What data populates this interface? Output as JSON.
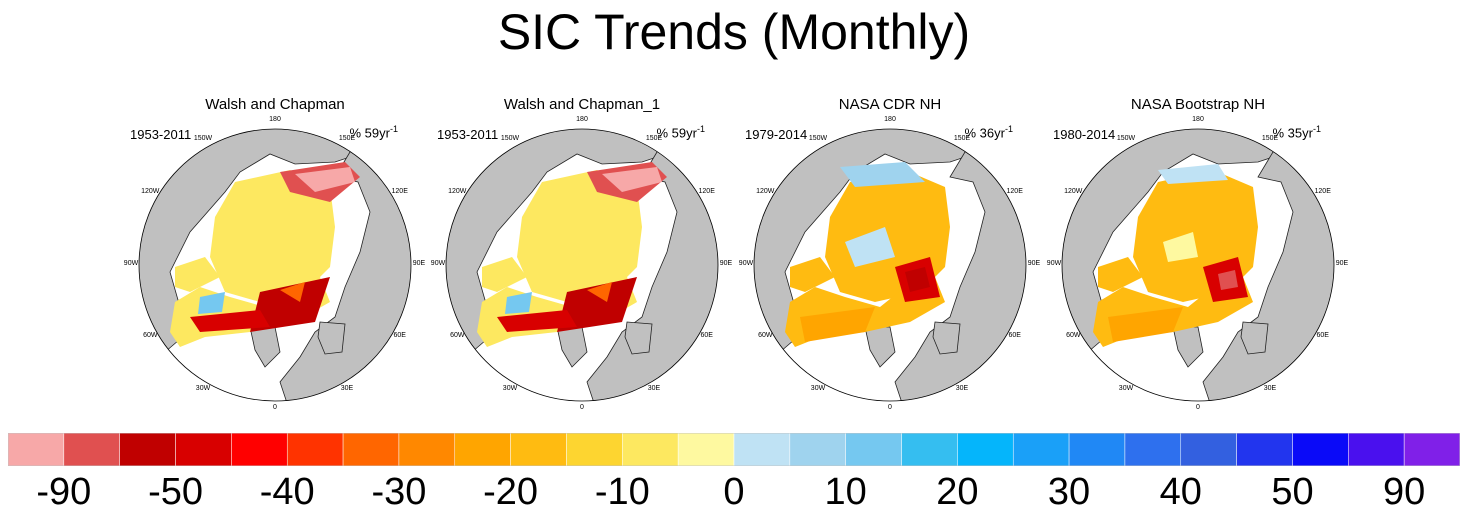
{
  "title": "SIC Trends (Monthly)",
  "panels": [
    {
      "name": "Walsh and Chapman",
      "period": "1953-2011",
      "pct_value": "% 59yr",
      "pct_exp": "-1",
      "style": "wc"
    },
    {
      "name": "Walsh and Chapman_1",
      "period": "1953-2011",
      "pct_value": "% 59yr",
      "pct_exp": "-1",
      "style": "wc"
    },
    {
      "name": "NASA CDR NH",
      "period": "1979-2014",
      "pct_value": "% 36yr",
      "pct_exp": "-1",
      "style": "cdr"
    },
    {
      "name": "NASA Bootstrap NH",
      "period": "1980-2014",
      "pct_value": "% 35yr",
      "pct_exp": "-1",
      "style": "bt"
    }
  ],
  "longitude_labels": [
    "180",
    "150E",
    "120E",
    "90E",
    "60E",
    "30E",
    "0",
    "30W",
    "60W",
    "90W",
    "120W",
    "150W"
  ],
  "colorbar": {
    "colors": [
      "#f7a8a8",
      "#e05050",
      "#c00000",
      "#d80000",
      "#ff0000",
      "#ff3300",
      "#ff6600",
      "#ff8800",
      "#ffa500",
      "#ffbb11",
      "#fdd530",
      "#fde860",
      "#fef9a0",
      "#bfe2f4",
      "#9fd3ee",
      "#75c8f0",
      "#35bef0",
      "#05b5fb",
      "#1aa0f8",
      "#2088f5",
      "#2e70ee",
      "#3360e0",
      "#2235ee",
      "#0a0af8",
      "#4a10ee",
      "#8020e8"
    ],
    "labels": [
      "-90",
      "-50",
      "-40",
      "-30",
      "-20",
      "-10",
      "0",
      "10",
      "20",
      "30",
      "40",
      "50",
      "90"
    ]
  },
  "map_colors": {
    "land": "#c0c0c0",
    "coast": "#222222",
    "ocean": "#ffffff"
  }
}
